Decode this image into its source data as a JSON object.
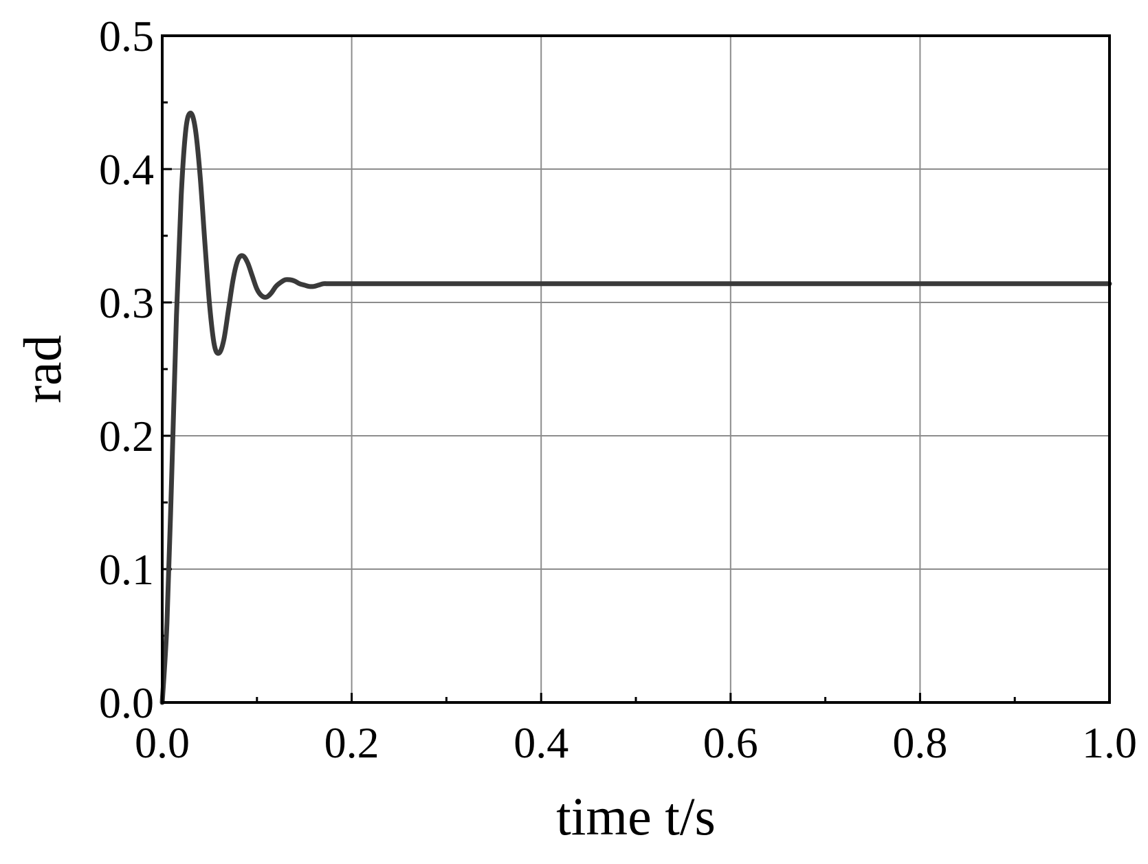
{
  "chart_data": {
    "type": "line",
    "title": "",
    "xlabel": "time t/s",
    "ylabel": "rad",
    "xlim": [
      0.0,
      1.0
    ],
    "ylim": [
      0.0,
      0.5
    ],
    "x_ticks": [
      "0.0",
      "0.2",
      "0.4",
      "0.6",
      "0.8",
      "1.0"
    ],
    "y_ticks": [
      "0.0",
      "0.1",
      "0.2",
      "0.3",
      "0.4",
      "0.5"
    ],
    "grid": true,
    "series": [
      {
        "color": "#3a3a3a",
        "x": [
          0.0,
          0.005,
          0.01,
          0.015,
          0.02,
          0.025,
          0.03,
          0.035,
          0.04,
          0.045,
          0.05,
          0.055,
          0.06,
          0.065,
          0.07,
          0.075,
          0.08,
          0.085,
          0.09,
          0.095,
          0.1,
          0.105,
          0.11,
          0.115,
          0.12,
          0.125,
          0.13,
          0.135,
          0.14,
          0.145,
          0.15,
          0.155,
          0.16,
          0.165,
          0.17,
          0.175,
          0.18,
          0.185,
          0.19,
          0.195,
          0.2,
          0.21,
          0.22,
          0.23,
          0.24,
          0.25,
          0.3,
          0.4,
          0.5,
          0.6,
          0.7,
          0.8,
          0.9,
          1.0
        ],
        "y": [
          0.0,
          0.06,
          0.17,
          0.29,
          0.38,
          0.43,
          0.442,
          0.43,
          0.395,
          0.345,
          0.298,
          0.268,
          0.262,
          0.272,
          0.295,
          0.318,
          0.332,
          0.335,
          0.33,
          0.32,
          0.31,
          0.305,
          0.304,
          0.307,
          0.312,
          0.315,
          0.317,
          0.317,
          0.316,
          0.314,
          0.313,
          0.312,
          0.312,
          0.313,
          0.314,
          0.314,
          0.314,
          0.314,
          0.314,
          0.314,
          0.314,
          0.314,
          0.314,
          0.314,
          0.314,
          0.314,
          0.314,
          0.314,
          0.314,
          0.314,
          0.314,
          0.314,
          0.314,
          0.314
        ]
      }
    ]
  }
}
